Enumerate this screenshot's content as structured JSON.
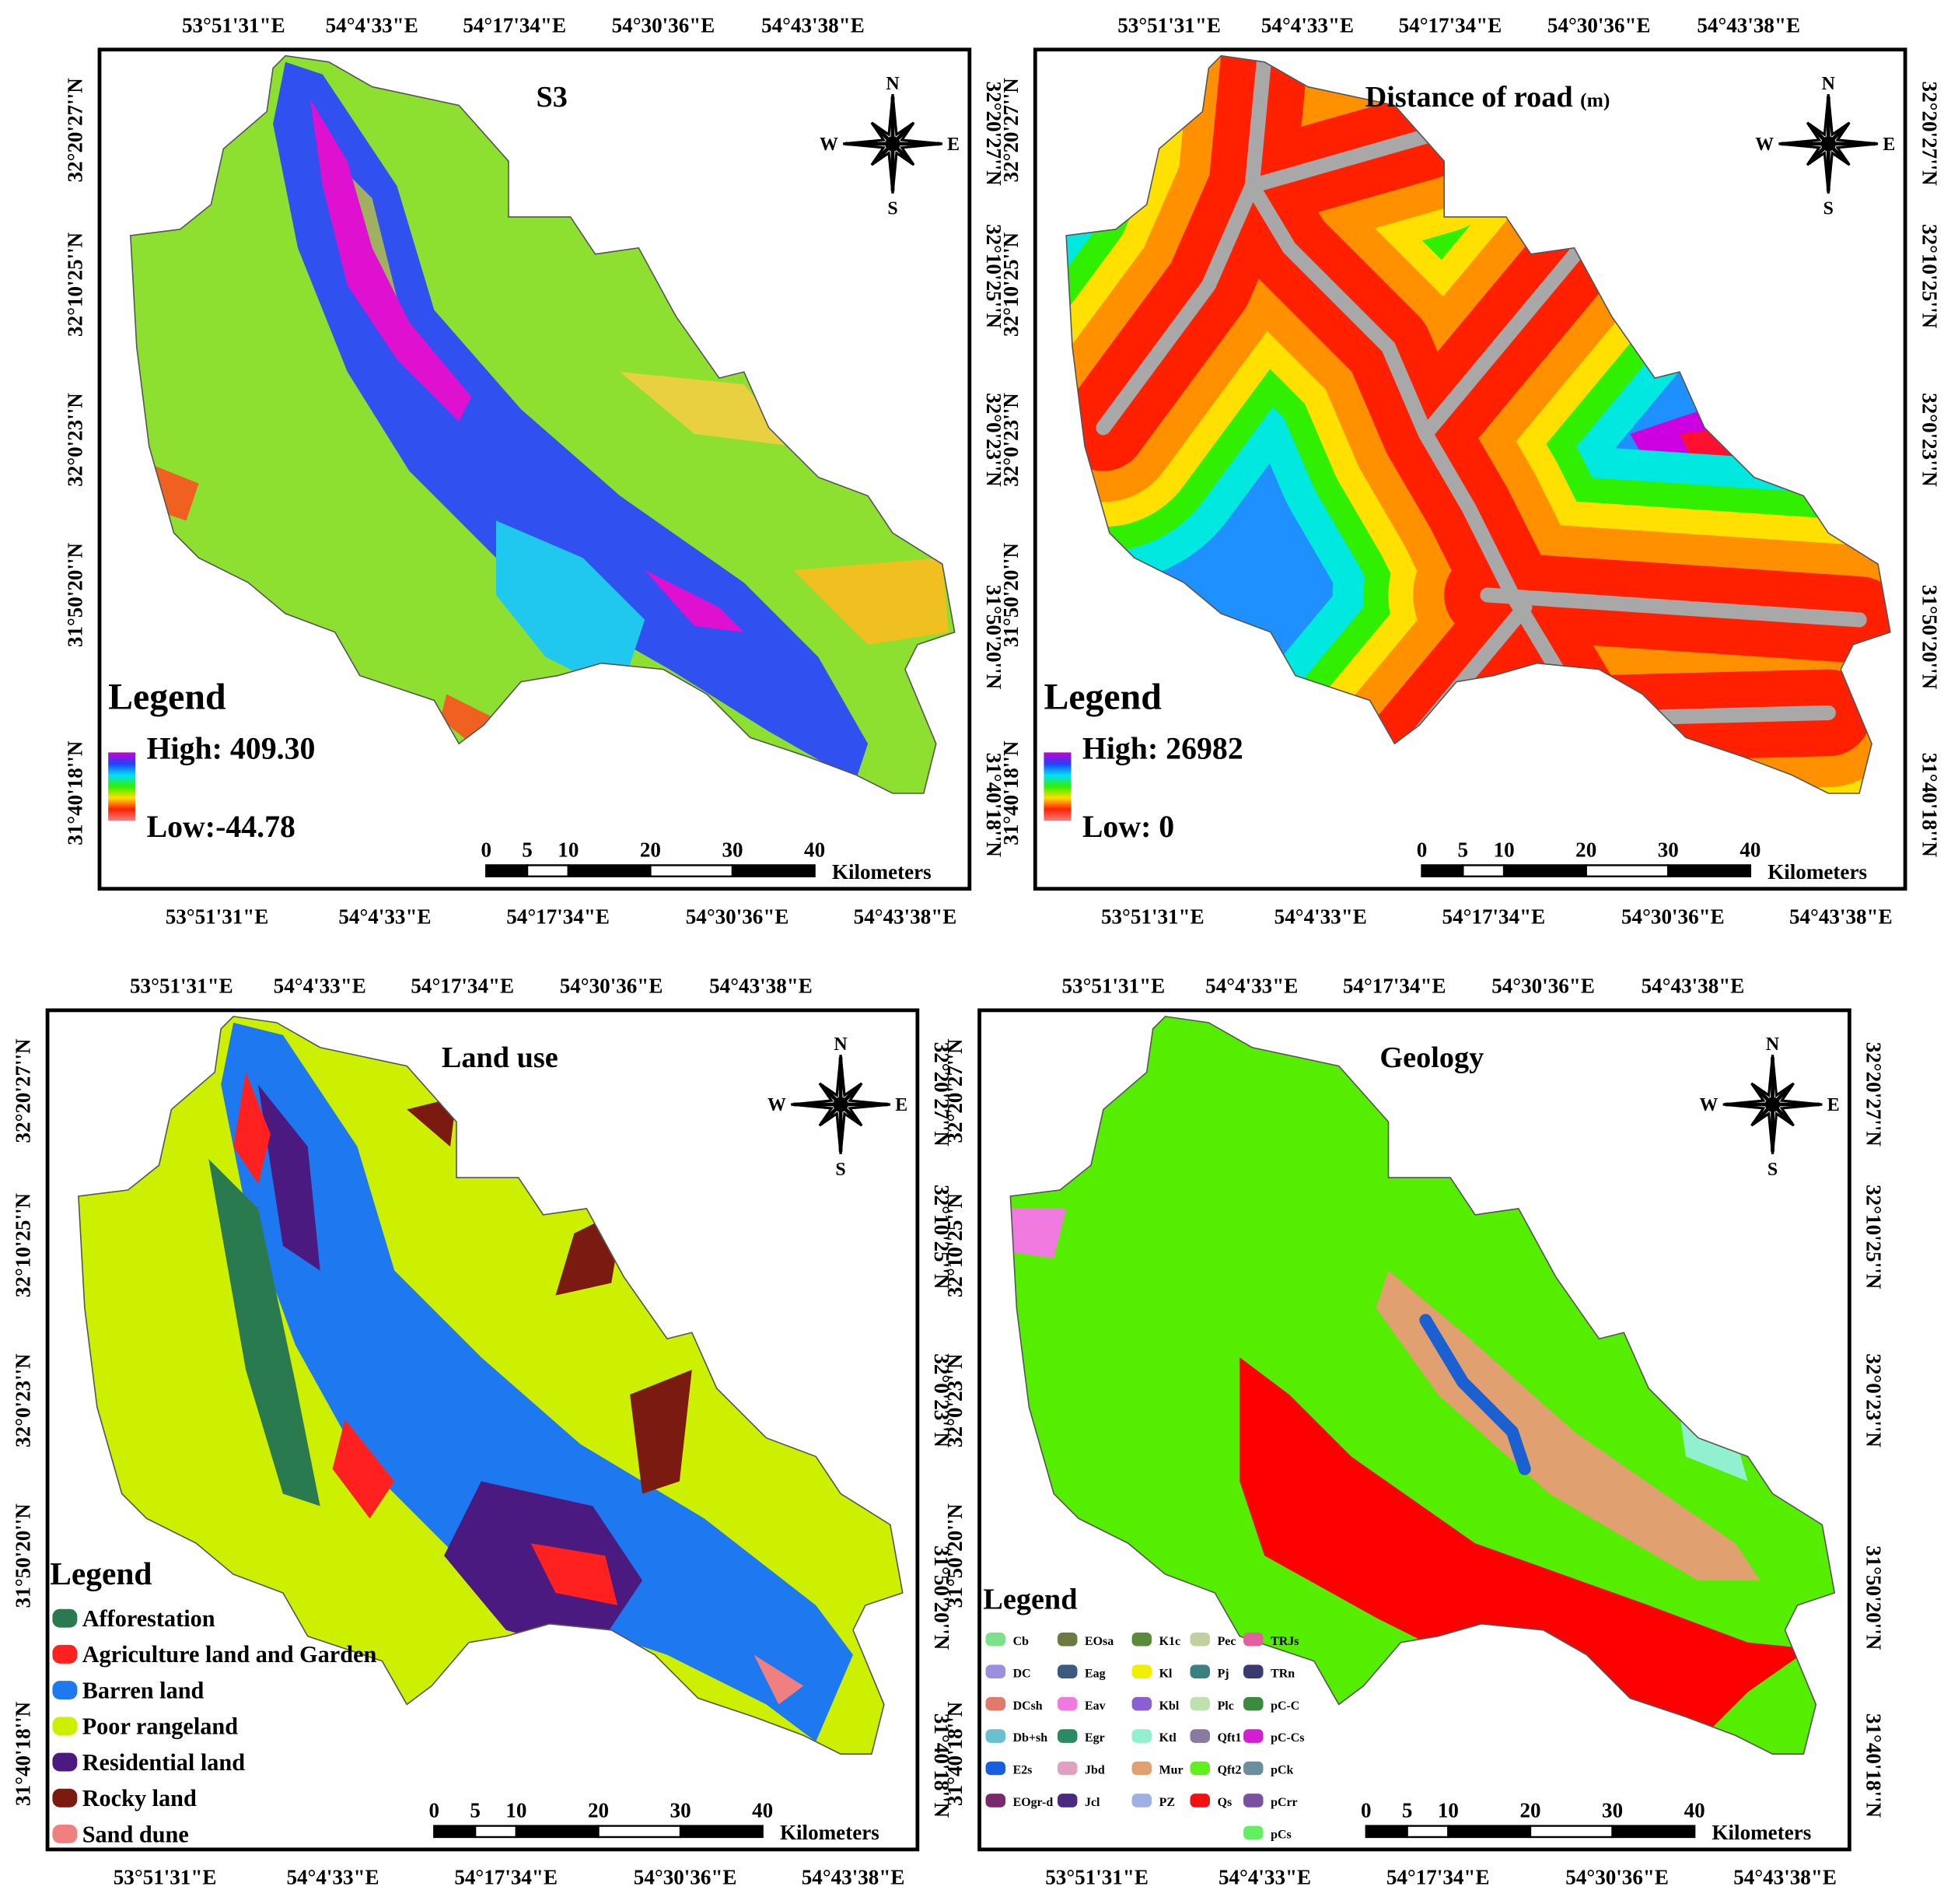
{
  "panels": [
    {
      "title": "S3",
      "lon_top": [
        "53°51'31\"E",
        "54°4'33\"E",
        "54°17'34\"E",
        "54°30'36\"E",
        "54°43'38\"E"
      ],
      "lon_bottom": [
        "53°51'31\"E",
        "54°4'33\"E",
        "54°17'34\"E",
        "54°30'36\"E",
        "54°43'38\"E"
      ],
      "lat_left": [
        "32°20'27''N",
        "32°10'25''N",
        "32°0'23''N",
        "31°50'20''N",
        "31°40'18''N"
      ],
      "lat_right": [
        "32°20'27''N",
        "32°10'25''N",
        "32°0'23''N",
        "31°50'20''N",
        "31°40'18''N"
      ],
      "compass": {
        "n": "N",
        "e": "E",
        "s": "S",
        "w": "W"
      },
      "legend": {
        "title": "Legend",
        "high": "High: 409.30",
        "low": "Low:-44.78",
        "ramp": [
          "#cc00cc",
          "#2040ff",
          "#00e0ff",
          "#30f000",
          "#ffe000",
          "#ff2000",
          "#f08080"
        ]
      },
      "scale": {
        "ticks": [
          0,
          5,
          10,
          20,
          30,
          40
        ],
        "unit": "Kilometers"
      }
    },
    {
      "title": "Distance of road",
      "title_unit": "(m)",
      "lon_top": [
        "53°51'31\"E",
        "54°4'33\"E",
        "54°17'34\"E",
        "54°30'36\"E",
        "54°43'38\"E"
      ],
      "lon_bottom": [
        "53°51'31\"E",
        "54°4'33\"E",
        "54°17'34\"E",
        "54°30'36\"E",
        "54°43'38\"E"
      ],
      "lat_left": [
        "32°20'27''N",
        "32°10'25''N",
        "32°0'23''N",
        "31°50'20''N",
        "31°40'18''N"
      ],
      "lat_right": [
        "32°20'27''N",
        "32°10'25''N",
        "32°0'23''N",
        "31°50'20''N",
        "31°40'18''N"
      ],
      "compass": {
        "n": "N",
        "e": "E",
        "s": "S",
        "w": "W"
      },
      "legend": {
        "title": "Legend",
        "high": "High: 26982",
        "low": "Low: 0",
        "ramp": [
          "#cc00cc",
          "#2040ff",
          "#00e0ff",
          "#30f000",
          "#ffe000",
          "#ff2000",
          "#f08080"
        ]
      },
      "scale": {
        "ticks": [
          0,
          5,
          10,
          20,
          30,
          40
        ],
        "unit": "Kilometers"
      }
    },
    {
      "title": "Land use",
      "lon_top": [
        "53°51'31\"E",
        "54°4'33\"E",
        "54°17'34\"E",
        "54°30'36\"E",
        "54°43'38\"E"
      ],
      "lon_bottom": [
        "53°51'31\"E",
        "54°4'33\"E",
        "54°17'34\"E",
        "54°30'36\"E",
        "54°43'38\"E"
      ],
      "lat_left": [
        "32°20'27''N",
        "32°10'25''N",
        "32°0'23''N",
        "31°50'20''N",
        "31°40'18''N"
      ],
      "lat_right": [
        "32°20'27''N",
        "32°10'25''N",
        "32°0'23''N",
        "31°50'20''N",
        "31°40'18''N"
      ],
      "compass": {
        "n": "N",
        "e": "E",
        "s": "S",
        "w": "W"
      },
      "legend": {
        "title": "Legend",
        "items": [
          {
            "label": "Afforestation",
            "color": "#2a7a50"
          },
          {
            "label": "Agriculture land and Garden",
            "color": "#ff2020"
          },
          {
            "label": "Barren land",
            "color": "#1e78f0"
          },
          {
            "label": "Poor rangeland",
            "color": "#ccf000"
          },
          {
            "label": "Residential land",
            "color": "#4a1a80"
          },
          {
            "label": "Rocky land",
            "color": "#7a1a10"
          },
          {
            "label": "Sand dune",
            "color": "#f08080"
          }
        ]
      },
      "scale": {
        "ticks": [
          0,
          5,
          10,
          20,
          30,
          40
        ],
        "unit": "Kilometers"
      }
    },
    {
      "title": "Geology",
      "lon_top": [
        "53°51'31\"E",
        "54°4'33\"E",
        "54°17'34\"E",
        "54°30'36\"E",
        "54°43'38\"E"
      ],
      "lon_bottom": [
        "53°51'31\"E",
        "54°4'33\"E",
        "54°17'34\"E",
        "54°30'36\"E",
        "54°43'38\"E"
      ],
      "lat_left": [
        "32°20'27''N",
        "32°10'25''N",
        "32°0'23''N",
        "31°50'20''N",
        "31°40'18''N"
      ],
      "lat_right": [
        "32°20'27''N",
        "32°10'25''N",
        "32°0'23''N",
        "31°50'20''N",
        "31°40'18''N"
      ],
      "compass": {
        "n": "N",
        "e": "E",
        "s": "S",
        "w": "W"
      },
      "legend": {
        "title": "Legend",
        "columns": [
          [
            {
              "label": "Cb",
              "color": "#7fe08a"
            },
            {
              "label": "DC",
              "color": "#9b8fe0"
            },
            {
              "label": "DCsh",
              "color": "#e07a6a"
            },
            {
              "label": "Db+sh",
              "color": "#6ac0d0"
            },
            {
              "label": "E2s",
              "color": "#1a5ee0"
            },
            {
              "label": "EOgr-d",
              "color": "#7a2a6a"
            }
          ],
          [
            {
              "label": "EOsa",
              "color": "#6a7a40"
            },
            {
              "label": "Eag",
              "color": "#3a5a80"
            },
            {
              "label": "Eav",
              "color": "#f07ae0"
            },
            {
              "label": "Egr",
              "color": "#2a8a60"
            },
            {
              "label": "Jbd",
              "color": "#e0a0c0"
            },
            {
              "label": "Jcl",
              "color": "#4a2a80"
            }
          ],
          [
            {
              "label": "K1c",
              "color": "#5a8a3a"
            },
            {
              "label": "Kl",
              "color": "#f0f000"
            },
            {
              "label": "Kbl",
              "color": "#8a60d0"
            },
            {
              "label": "Ktl",
              "color": "#90f0d0"
            },
            {
              "label": "Mur",
              "color": "#e0a070"
            },
            {
              "label": "PZ",
              "color": "#a0b0e0"
            }
          ],
          [
            {
              "label": "Pec",
              "color": "#c0d0a0"
            },
            {
              "label": "Pj",
              "color": "#3a8080"
            },
            {
              "label": "Plc",
              "color": "#c0e0b0"
            },
            {
              "label": "Qft1",
              "color": "#8a7aa0"
            },
            {
              "label": "Qft2",
              "color": "#60f020"
            },
            {
              "label": "Qs",
              "color": "#f01010"
            }
          ],
          [
            {
              "label": "TRJs",
              "color": "#e060a0"
            },
            {
              "label": "TRn",
              "color": "#3a3a70"
            },
            {
              "label": "pC-C",
              "color": "#3a8a40"
            },
            {
              "label": "pC-Cs",
              "color": "#d020d0"
            },
            {
              "label": "pCk",
              "color": "#6a90a0"
            },
            {
              "label": "pCrr",
              "color": "#7a50a0"
            },
            {
              "label": "pCs",
              "color": "#60f060"
            }
          ]
        ]
      },
      "scale": {
        "ticks": [
          0,
          5,
          10,
          20,
          30,
          40
        ],
        "unit": "Kilometers"
      }
    }
  ]
}
